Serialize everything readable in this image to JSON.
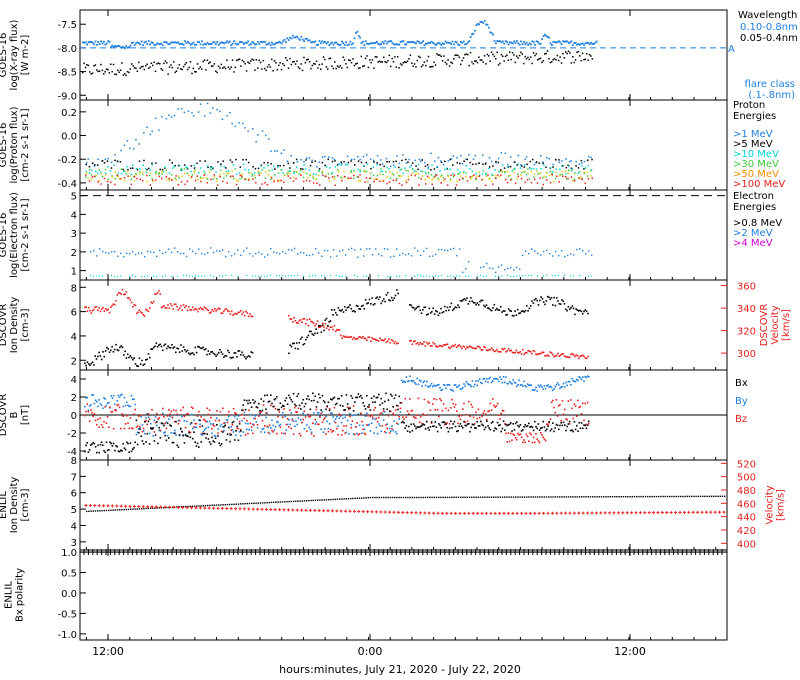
{
  "footer": {
    "time_axis_label": "hours:minutes, July 21, 2020 - July 22, 2020"
  },
  "x_ticks": [
    "12:00",
    "0:00",
    "12:00"
  ],
  "colors": {
    "black": "#000000",
    "blue": "#1e7fe0",
    "cyan": "#00d8d8",
    "green": "#3cc83c",
    "yellow": "#e8c800",
    "orange": "#ff8c00",
    "red": "#e8211e",
    "magenta": "#d200d2"
  },
  "chart_data": [
    {
      "type": "scatter",
      "instrument": "GOES-16",
      "ylabel": "log(X-ray flux) [W m-2]",
      "yticks": [
        "-7.5",
        "-8.0",
        "-8.5",
        "-9.0"
      ],
      "ylim": [
        -9.1,
        -7.2
      ],
      "legend": {
        "title": "Wavelength",
        "entries": [
          "0.10-0.8nm",
          "0.05-0.4nm"
        ]
      },
      "flare_class": {
        "label": "A",
        "level": -8.0,
        "caption": [
          "flare class",
          "(.1-.8nm)"
        ]
      },
      "series": [
        {
          "name": "0.10-0.8nm",
          "baseline": -7.9
        },
        {
          "name": "0.05-0.4nm",
          "baseline": -8.3
        }
      ]
    },
    {
      "type": "scatter",
      "instrument": "GOES-16",
      "ylabel": "log(Proton flux) [cm-2 s-1 sr-1]",
      "yticks": [
        "0.2",
        "0.0",
        "-0.2",
        "-0.4"
      ],
      "ylim": [
        -0.46,
        0.3
      ],
      "legend": {
        "title": [
          "Proton",
          "Energies"
        ],
        "entries": [
          ">1 MeV",
          ">5 MeV",
          ">10 MeV",
          ">30 MeV",
          ">50 MeV",
          ">100 MeV"
        ]
      }
    },
    {
      "type": "scatter",
      "instrument": "GOES-16",
      "ylabel": "log(Electron flux) [cm-2 s-1 sr-1]",
      "yticks": [
        "5",
        "4",
        "3",
        "2",
        "1"
      ],
      "ylim": [
        0.5,
        5.3
      ],
      "legend": {
        "title": [
          "Electron",
          "Energies"
        ],
        "entries": [
          ">0.8 MeV",
          ">2 MeV",
          ">4 MeV"
        ]
      }
    },
    {
      "type": "scatter",
      "instrument": "DSCOVR",
      "ylabel": "Ion Density [cm-3]",
      "yticks": [
        "8",
        "6",
        "4",
        "2"
      ],
      "ylim": [
        1.2,
        8.6
      ],
      "y2label": "Velocity [km/s]",
      "y2ticks": [
        "360",
        "340",
        "320",
        "300"
      ],
      "y2lim": [
        285,
        365
      ]
    },
    {
      "type": "scatter",
      "instrument": "DSCOVR",
      "ylabel": "B [nT]",
      "yticks": [
        "4",
        "2",
        "0",
        "-2",
        "-4"
      ],
      "ylim": [
        -5,
        5
      ],
      "legend": {
        "entries": [
          "Bx",
          "By",
          "Bz"
        ]
      }
    },
    {
      "type": "line",
      "instrument": "ENLIL",
      "ylabel": "Ion Density [cm-3]",
      "yticks": [
        "8",
        "7",
        "6",
        "5",
        "4",
        "3"
      ],
      "ylim": [
        2.5,
        8
      ],
      "y2label": "Velocity [km/s]",
      "y2ticks": [
        "520",
        "500",
        "480",
        "460",
        "440",
        "420",
        "400"
      ],
      "y2lim": [
        390,
        525
      ]
    },
    {
      "type": "line",
      "instrument": "ENLIL",
      "ylabel": "Bx polarity",
      "yticks": [
        "1.0",
        "0.5",
        "0.0",
        "-0.5",
        "-1.0"
      ],
      "ylim": [
        -1.15,
        1.05
      ],
      "values_constant": 1.0
    }
  ]
}
